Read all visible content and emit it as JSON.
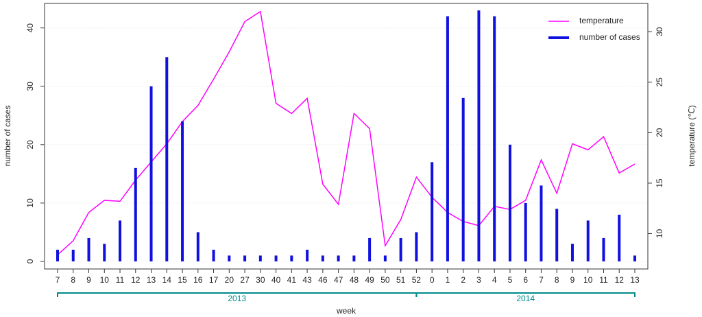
{
  "chart_data": {
    "type": "bar-line",
    "x_label": "week",
    "y_label": "number of cases",
    "y2_label": "temperature (℃)",
    "categories": [
      "7",
      "8",
      "9",
      "10",
      "11",
      "12",
      "13",
      "14",
      "15",
      "16",
      "17",
      "20",
      "27",
      "30",
      "40",
      "41",
      "43",
      "46",
      "47",
      "48",
      "49",
      "50",
      "51",
      "52",
      "0",
      "1",
      "2",
      "3",
      "4",
      "5",
      "6",
      "7",
      "8",
      "9",
      "10",
      "11",
      "12",
      "13"
    ],
    "groups": [
      {
        "label": "2013",
        "start": 0,
        "end": 23
      },
      {
        "label": "2014",
        "start": 23,
        "end": 37
      }
    ],
    "series": [
      {
        "name": "temperature",
        "color": "#ff00ff",
        "axis": "y2",
        "kind": "line",
        "values": [
          7.9,
          9.3,
          12.1,
          13.3,
          13.2,
          15.3,
          17.1,
          18.9,
          21.1,
          22.7,
          25.3,
          28.0,
          31.0,
          32.0,
          22.9,
          21.9,
          23.4,
          14.9,
          12.9,
          21.9,
          20.4,
          8.8,
          11.4,
          15.6,
          13.6,
          12.1,
          11.2,
          10.8,
          12.7,
          12.4,
          13.3,
          17.3,
          14.0,
          18.9,
          18.3,
          19.6,
          16.0,
          16.9
        ]
      },
      {
        "name": "number of cases",
        "color": "#1010e0",
        "axis": "y",
        "kind": "bar",
        "values": [
          2,
          2,
          4,
          3,
          7,
          16,
          30,
          35,
          24,
          5,
          2,
          1,
          1,
          1,
          1,
          1,
          2,
          1,
          1,
          1,
          4,
          1,
          4,
          5,
          17,
          42,
          28,
          43,
          42,
          20,
          10,
          13,
          9,
          3,
          7,
          4,
          8,
          1
        ]
      }
    ],
    "ylim": [
      -1.3,
      44.2
    ],
    "yticks": [
      0,
      10,
      20,
      30,
      40
    ],
    "y2lim": [
      6.5,
      32.8
    ],
    "y2ticks": [
      10,
      15,
      20,
      25,
      30
    ],
    "grid": true,
    "legend": "top-right",
    "group_color": "#008b8b"
  }
}
